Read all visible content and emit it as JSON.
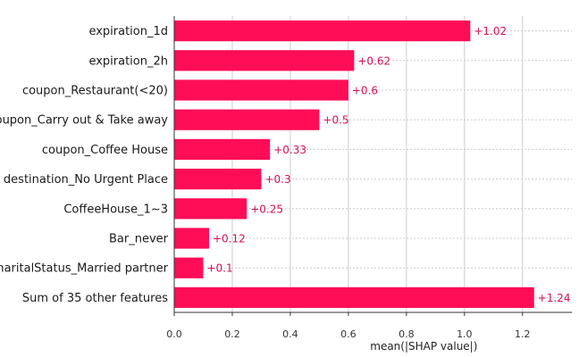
{
  "chart_data": {
    "type": "bar",
    "orientation": "horizontal",
    "categories": [
      "expiration_1d",
      "expiration_2h",
      "coupon_Restaurant(<20)",
      "coupon_Carry out & Take away",
      "coupon_Coffee House",
      "destination_No Urgent Place",
      "CoffeeHouse_1~3",
      "Bar_never",
      "maritalStatus_Married partner",
      "Sum of 35 other features"
    ],
    "values": [
      1.02,
      0.62,
      0.6,
      0.5,
      0.33,
      0.3,
      0.25,
      0.12,
      0.1,
      1.24
    ],
    "value_labels": [
      "+1.02",
      "+0.62",
      "+0.6",
      "+0.5",
      "+0.33",
      "+0.3",
      "+0.25",
      "+0.12",
      "+0.1",
      "+1.24"
    ],
    "xlabel": "mean(|SHAP value|)",
    "xlim": [
      0,
      1.37
    ],
    "xticks": [
      0.0,
      0.2,
      0.4,
      0.6,
      0.8,
      1.0,
      1.2
    ],
    "xtick_labels": [
      "0.0",
      "0.2",
      "0.4",
      "0.6",
      "0.8",
      "1.0",
      "1.2"
    ],
    "grid": true,
    "colors": {
      "bar": "#ff0d57",
      "value_label": "#d6105a",
      "grid": "#cccccc"
    }
  }
}
